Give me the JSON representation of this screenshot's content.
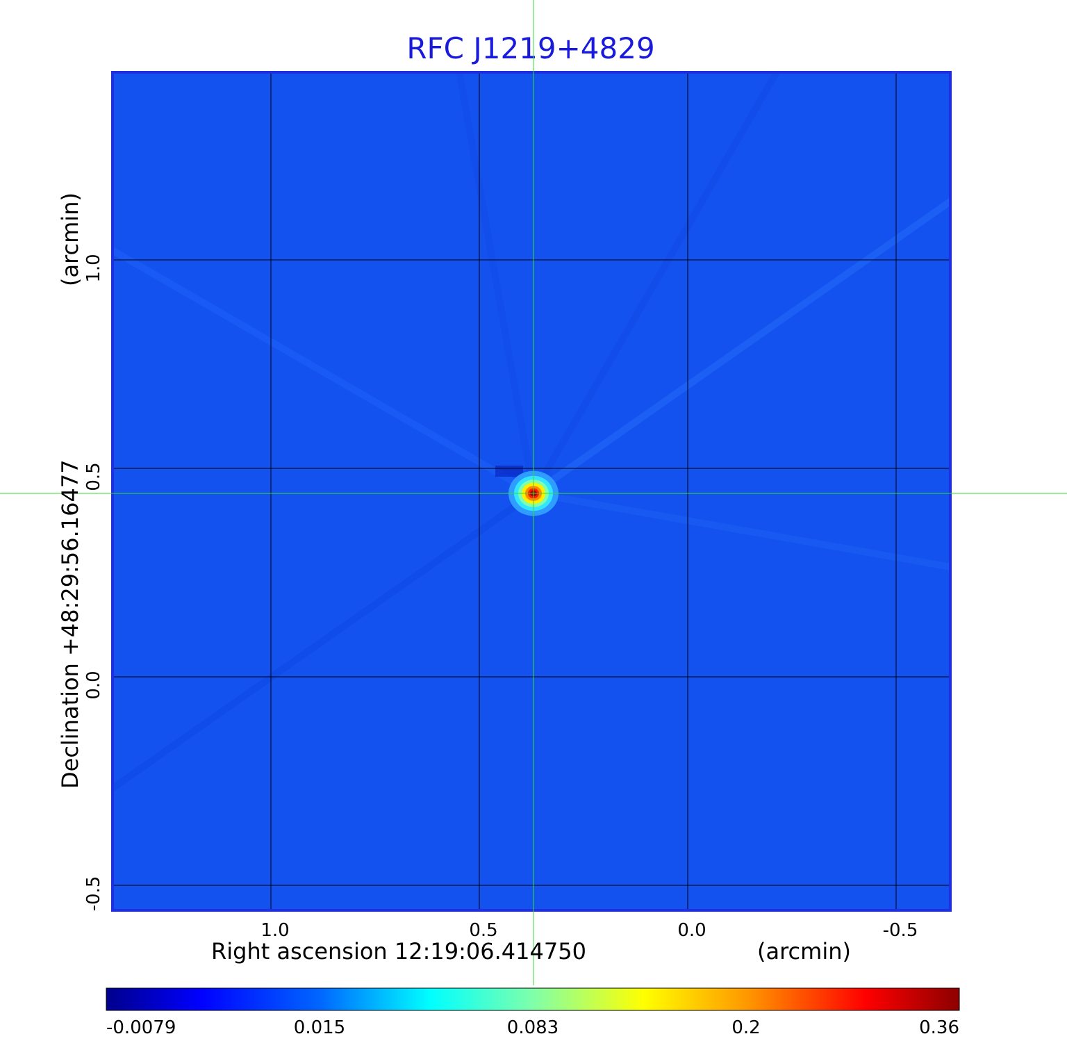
{
  "chart_data": {
    "type": "heatmap",
    "title": "RFC J1219+4829",
    "xlabel": "Right ascension  12:19:06.414750",
    "xunit": "(arcmin)",
    "ylabel": "Declination  +48:29:56.16477",
    "yunit": "(arcmin)",
    "xlim": [
      1.38,
      -0.63
    ],
    "ylim": [
      -0.56,
      1.45
    ],
    "x_ticks": [
      {
        "value": 1.0,
        "label": "1.0"
      },
      {
        "value": 0.5,
        "label": "0.5"
      },
      {
        "value": 0.0,
        "label": "0.0"
      },
      {
        "value": -0.5,
        "label": "-0.5"
      }
    ],
    "y_ticks": [
      {
        "value": 1.0,
        "label": "1.0"
      },
      {
        "value": 0.5,
        "label": "0.5"
      },
      {
        "value": 0.0,
        "label": "0.0"
      },
      {
        "value": -0.5,
        "label": "-0.5"
      }
    ],
    "grid": true,
    "crosshair": {
      "x": 0.37,
      "y": 0.44
    },
    "source": {
      "x": 0.37,
      "y": 0.44,
      "peak": 0.36
    },
    "background_level": 0.003,
    "colorbar": {
      "colormap": "jet",
      "ticks": [
        {
          "value": -0.0079,
          "label": "-0.0079"
        },
        {
          "value": 0.015,
          "label": "0.015"
        },
        {
          "value": 0.083,
          "label": "0.083"
        },
        {
          "value": 0.2,
          "label": "0.2"
        },
        {
          "value": 0.36,
          "label": "0.36"
        }
      ]
    },
    "colors": {
      "title": "#1a1adc",
      "frame": "#1e2fe0",
      "grid": "#000000",
      "crosshair": "#33dd33",
      "background": "#1452f0"
    }
  }
}
